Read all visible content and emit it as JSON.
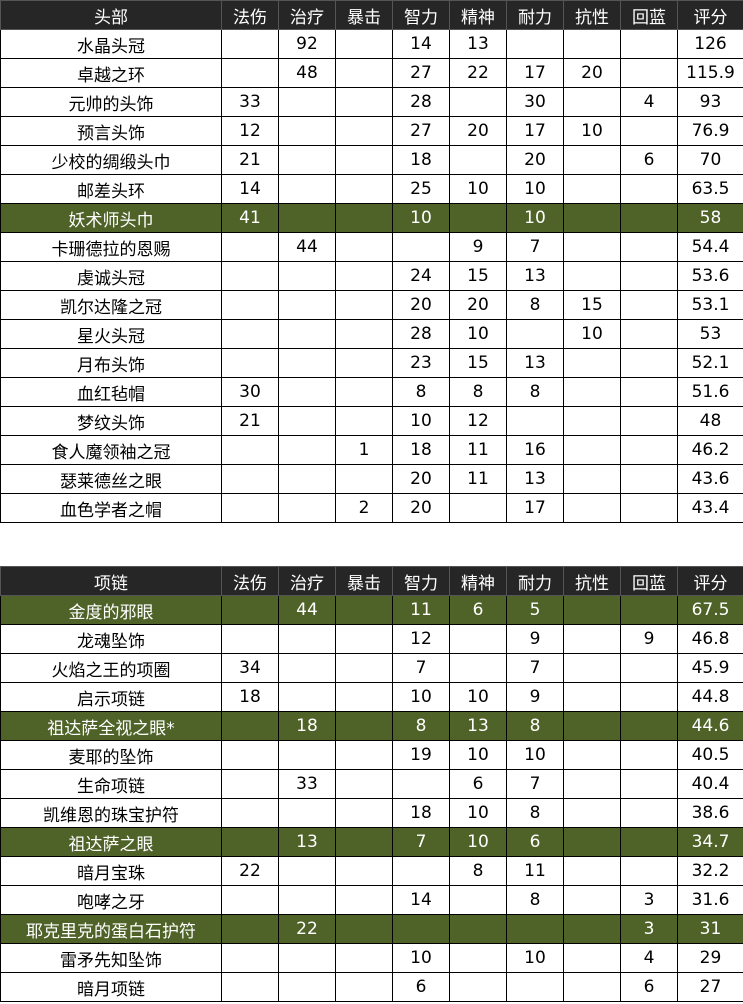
{
  "colors": {
    "header_bg": "#262626",
    "highlight_bg": "#4f6228"
  },
  "tables": [
    {
      "headers": [
        "头部",
        "法伤",
        "治疗",
        "暴击",
        "智力",
        "精神",
        "耐力",
        "抗性",
        "回蓝",
        "评分"
      ],
      "rows": [
        {
          "highlight": false,
          "cells": [
            "水晶头冠",
            "",
            "92",
            "",
            "14",
            "13",
            "",
            "",
            "",
            "126"
          ]
        },
        {
          "highlight": false,
          "cells": [
            "卓越之环",
            "",
            "48",
            "",
            "27",
            "22",
            "17",
            "20",
            "",
            "115.9"
          ]
        },
        {
          "highlight": false,
          "cells": [
            "元帅的头饰",
            "33",
            "",
            "",
            "28",
            "",
            "30",
            "",
            "4",
            "93"
          ]
        },
        {
          "highlight": false,
          "cells": [
            "预言头饰",
            "12",
            "",
            "",
            "27",
            "20",
            "17",
            "10",
            "",
            "76.9"
          ]
        },
        {
          "highlight": false,
          "cells": [
            "少校的绸缎头巾",
            "21",
            "",
            "",
            "18",
            "",
            "20",
            "",
            "6",
            "70"
          ]
        },
        {
          "highlight": false,
          "cells": [
            "邮差头环",
            "14",
            "",
            "",
            "25",
            "10",
            "10",
            "",
            "",
            "63.5"
          ]
        },
        {
          "highlight": true,
          "cells": [
            "妖术师头巾",
            "41",
            "",
            "",
            "10",
            "",
            "10",
            "",
            "",
            "58"
          ]
        },
        {
          "highlight": false,
          "cells": [
            "卡珊德拉的恩赐",
            "",
            "44",
            "",
            "",
            "9",
            "7",
            "",
            "",
            "54.4"
          ]
        },
        {
          "highlight": false,
          "cells": [
            "虔诚头冠",
            "",
            "",
            "",
            "24",
            "15",
            "13",
            "",
            "",
            "53.6"
          ]
        },
        {
          "highlight": false,
          "cells": [
            "凯尔达隆之冠",
            "",
            "",
            "",
            "20",
            "20",
            "8",
            "15",
            "",
            "53.1"
          ]
        },
        {
          "highlight": false,
          "cells": [
            "星火头冠",
            "",
            "",
            "",
            "28",
            "10",
            "",
            "10",
            "",
            "53"
          ]
        },
        {
          "highlight": false,
          "cells": [
            "月布头饰",
            "",
            "",
            "",
            "23",
            "15",
            "13",
            "",
            "",
            "52.1"
          ]
        },
        {
          "highlight": false,
          "cells": [
            "血红毡帽",
            "30",
            "",
            "",
            "8",
            "8",
            "8",
            "",
            "",
            "51.6"
          ]
        },
        {
          "highlight": false,
          "cells": [
            "梦纹头饰",
            "21",
            "",
            "",
            "10",
            "12",
            "",
            "",
            "",
            "48"
          ]
        },
        {
          "highlight": false,
          "cells": [
            "食人魔领袖之冠",
            "",
            "",
            "1",
            "18",
            "11",
            "16",
            "",
            "",
            "46.2"
          ]
        },
        {
          "highlight": false,
          "cells": [
            "瑟莱德丝之眼",
            "",
            "",
            "",
            "20",
            "11",
            "13",
            "",
            "",
            "43.6"
          ]
        },
        {
          "highlight": false,
          "cells": [
            "血色学者之帽",
            "",
            "",
            "2",
            "20",
            "",
            "17",
            "",
            "",
            "43.4"
          ]
        }
      ]
    },
    {
      "headers": [
        "项链",
        "法伤",
        "治疗",
        "暴击",
        "智力",
        "精神",
        "耐力",
        "抗性",
        "回蓝",
        "评分"
      ],
      "rows": [
        {
          "highlight": true,
          "cells": [
            "金度的邪眼",
            "",
            "44",
            "",
            "11",
            "6",
            "5",
            "",
            "",
            "67.5"
          ]
        },
        {
          "highlight": false,
          "cells": [
            "龙魂坠饰",
            "",
            "",
            "",
            "12",
            "",
            "9",
            "",
            "9",
            "46.8"
          ]
        },
        {
          "highlight": false,
          "cells": [
            "火焰之王的项圈",
            "34",
            "",
            "",
            "7",
            "",
            "7",
            "",
            "",
            "45.9"
          ]
        },
        {
          "highlight": false,
          "cells": [
            "启示项链",
            "18",
            "",
            "",
            "10",
            "10",
            "9",
            "",
            "",
            "44.8"
          ]
        },
        {
          "highlight": true,
          "cells": [
            "祖达萨全视之眼*",
            "",
            "18",
            "",
            "8",
            "13",
            "8",
            "",
            "",
            "44.6"
          ]
        },
        {
          "highlight": false,
          "cells": [
            "麦耶的坠饰",
            "",
            "",
            "",
            "19",
            "10",
            "10",
            "",
            "",
            "40.5"
          ]
        },
        {
          "highlight": false,
          "cells": [
            "生命项链",
            "",
            "33",
            "",
            "",
            "6",
            "7",
            "",
            "",
            "40.4"
          ]
        },
        {
          "highlight": false,
          "cells": [
            "凯维恩的珠宝护符",
            "",
            "",
            "",
            "18",
            "10",
            "8",
            "",
            "",
            "38.6"
          ]
        },
        {
          "highlight": true,
          "cells": [
            "祖达萨之眼",
            "",
            "13",
            "",
            "7",
            "10",
            "6",
            "",
            "",
            "34.7"
          ]
        },
        {
          "highlight": false,
          "cells": [
            "暗月宝珠",
            "22",
            "",
            "",
            "",
            "8",
            "11",
            "",
            "",
            "32.2"
          ]
        },
        {
          "highlight": false,
          "cells": [
            "咆哮之牙",
            "",
            "",
            "",
            "14",
            "",
            "8",
            "",
            "3",
            "31.6"
          ]
        },
        {
          "highlight": true,
          "cells": [
            "耶克里克的蛋白石护符",
            "",
            "22",
            "",
            "",
            "",
            "",
            "",
            "3",
            "31"
          ]
        },
        {
          "highlight": false,
          "cells": [
            "雷矛先知坠饰",
            "",
            "",
            "",
            "10",
            "",
            "10",
            "",
            "4",
            "29"
          ]
        },
        {
          "highlight": false,
          "cells": [
            "暗月项链",
            "",
            "",
            "",
            "6",
            "",
            "",
            "",
            "6",
            "27"
          ]
        }
      ]
    }
  ]
}
